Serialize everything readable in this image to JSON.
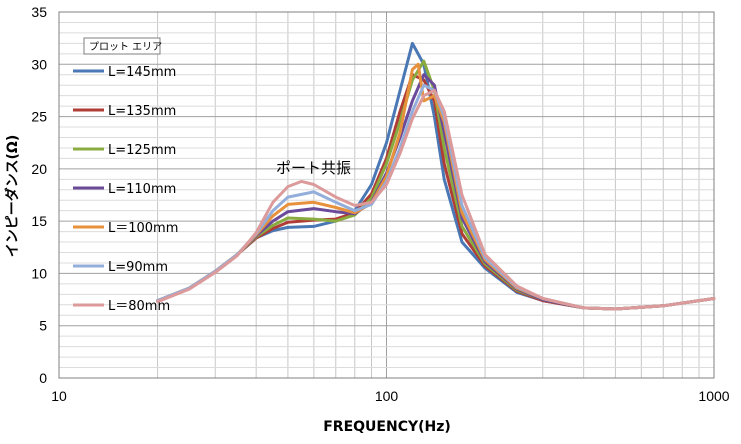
{
  "chart_data": {
    "type": "line",
    "xlabel": "FREQUENCY(Hz)",
    "ylabel": "インピーダンス(Ω)",
    "xscale": "log",
    "xlim": [
      10,
      1000
    ],
    "ylim": [
      0,
      35
    ],
    "x_tick_labels": [
      "10",
      "100",
      "1000"
    ],
    "y_tick_labels": [
      "0",
      "5",
      "10",
      "15",
      "20",
      "25",
      "30",
      "35"
    ],
    "grid": true,
    "legend_position": "left",
    "annotation": "ポート共振",
    "tooltip": "プロット エリア",
    "series": [
      {
        "name": "L=145mm",
        "color": "#4a78b5",
        "points": [
          [
            20,
            7.4
          ],
          [
            25,
            8.6
          ],
          [
            30,
            10.2
          ],
          [
            35,
            11.8
          ],
          [
            40,
            13.4
          ],
          [
            45,
            14.1
          ],
          [
            50,
            14.4
          ],
          [
            60,
            14.5
          ],
          [
            70,
            15.0
          ],
          [
            80,
            16.0
          ],
          [
            90,
            18.5
          ],
          [
            100,
            22.5
          ],
          [
            110,
            27.5
          ],
          [
            120,
            32.0
          ],
          [
            130,
            30.0
          ],
          [
            140,
            25.0
          ],
          [
            150,
            19.0
          ],
          [
            170,
            13.0
          ],
          [
            200,
            10.5
          ],
          [
            250,
            8.2
          ],
          [
            300,
            7.4
          ],
          [
            400,
            6.7
          ],
          [
            500,
            6.6
          ],
          [
            700,
            6.9
          ],
          [
            1000,
            7.6
          ]
        ]
      },
      {
        "name": "L=135mm",
        "color": "#b03c36",
        "points": [
          [
            20,
            7.4
          ],
          [
            25,
            8.6
          ],
          [
            30,
            10.2
          ],
          [
            35,
            11.8
          ],
          [
            40,
            13.4
          ],
          [
            45,
            14.3
          ],
          [
            50,
            14.9
          ],
          [
            60,
            15.1
          ],
          [
            70,
            15.2
          ],
          [
            80,
            15.8
          ],
          [
            90,
            17.6
          ],
          [
            100,
            21.0
          ],
          [
            110,
            25.5
          ],
          [
            120,
            29.0
          ],
          [
            130,
            28.5
          ],
          [
            140,
            26.5
          ],
          [
            150,
            20.5
          ],
          [
            170,
            13.8
          ],
          [
            200,
            10.7
          ],
          [
            250,
            8.3
          ],
          [
            300,
            7.4
          ],
          [
            400,
            6.7
          ],
          [
            500,
            6.6
          ],
          [
            700,
            6.9
          ],
          [
            1000,
            7.6
          ]
        ]
      },
      {
        "name": "L=125mm",
        "color": "#8aab3f",
        "points": [
          [
            20,
            7.4
          ],
          [
            25,
            8.6
          ],
          [
            30,
            10.2
          ],
          [
            35,
            11.8
          ],
          [
            40,
            13.5
          ],
          [
            45,
            14.6
          ],
          [
            50,
            15.3
          ],
          [
            60,
            15.2
          ],
          [
            70,
            15.0
          ],
          [
            80,
            15.6
          ],
          [
            90,
            17.2
          ],
          [
            100,
            20.5
          ],
          [
            110,
            24.5
          ],
          [
            120,
            28.5
          ],
          [
            130,
            30.3
          ],
          [
            140,
            27.5
          ],
          [
            150,
            22.0
          ],
          [
            170,
            14.5
          ],
          [
            200,
            10.9
          ],
          [
            250,
            8.4
          ],
          [
            300,
            7.5
          ],
          [
            400,
            6.7
          ],
          [
            500,
            6.6
          ],
          [
            700,
            6.9
          ],
          [
            1000,
            7.6
          ]
        ]
      },
      {
        "name": "L=110mm",
        "color": "#6a4a99",
        "points": [
          [
            20,
            7.4
          ],
          [
            25,
            8.6
          ],
          [
            30,
            10.2
          ],
          [
            35,
            11.8
          ],
          [
            40,
            13.6
          ],
          [
            45,
            15.0
          ],
          [
            50,
            15.9
          ],
          [
            60,
            16.2
          ],
          [
            70,
            15.9
          ],
          [
            80,
            15.7
          ],
          [
            90,
            16.8
          ],
          [
            100,
            19.6
          ],
          [
            110,
            23.0
          ],
          [
            120,
            26.5
          ],
          [
            130,
            29.0
          ],
          [
            140,
            28.0
          ],
          [
            150,
            23.5
          ],
          [
            170,
            15.3
          ],
          [
            200,
            11.1
          ],
          [
            250,
            8.5
          ],
          [
            300,
            7.5
          ],
          [
            400,
            6.7
          ],
          [
            500,
            6.6
          ],
          [
            700,
            6.9
          ],
          [
            1000,
            7.6
          ]
        ]
      },
      {
        "name": "L＝100mm",
        "color": "#e7913d",
        "points": [
          [
            20,
            7.4
          ],
          [
            25,
            8.6
          ],
          [
            30,
            10.2
          ],
          [
            35,
            11.8
          ],
          [
            40,
            13.7
          ],
          [
            45,
            15.5
          ],
          [
            50,
            16.6
          ],
          [
            60,
            16.8
          ],
          [
            70,
            16.3
          ],
          [
            80,
            15.8
          ],
          [
            90,
            16.7
          ],
          [
            100,
            19.3
          ],
          [
            110,
            23.5
          ],
          [
            120,
            29.5
          ],
          [
            125,
            30.0
          ],
          [
            130,
            26.5
          ],
          [
            140,
            27.0
          ],
          [
            150,
            24.5
          ],
          [
            170,
            15.8
          ],
          [
            200,
            11.3
          ],
          [
            250,
            8.6
          ],
          [
            300,
            7.6
          ],
          [
            400,
            6.7
          ],
          [
            500,
            6.6
          ],
          [
            700,
            6.9
          ],
          [
            1000,
            7.6
          ]
        ]
      },
      {
        "name": "L=90mm",
        "color": "#94aedb",
        "points": [
          [
            20,
            7.4
          ],
          [
            25,
            8.6
          ],
          [
            30,
            10.2
          ],
          [
            35,
            11.8
          ],
          [
            40,
            13.8
          ],
          [
            45,
            16.0
          ],
          [
            50,
            17.3
          ],
          [
            60,
            17.8
          ],
          [
            70,
            16.8
          ],
          [
            80,
            16.0
          ],
          [
            90,
            16.6
          ],
          [
            100,
            18.8
          ],
          [
            110,
            22.0
          ],
          [
            120,
            25.5
          ],
          [
            130,
            28.0
          ],
          [
            140,
            27.5
          ],
          [
            150,
            25.0
          ],
          [
            170,
            16.5
          ],
          [
            200,
            11.5
          ],
          [
            250,
            8.7
          ],
          [
            300,
            7.6
          ],
          [
            400,
            6.7
          ],
          [
            500,
            6.6
          ],
          [
            700,
            6.9
          ],
          [
            1000,
            7.6
          ]
        ]
      },
      {
        "name": "L＝80mm",
        "color": "#dc9a9b",
        "points": [
          [
            20,
            7.3
          ],
          [
            25,
            8.5
          ],
          [
            30,
            10.1
          ],
          [
            35,
            11.7
          ],
          [
            40,
            13.9
          ],
          [
            45,
            16.8
          ],
          [
            50,
            18.3
          ],
          [
            55,
            18.8
          ],
          [
            60,
            18.5
          ],
          [
            70,
            17.3
          ],
          [
            80,
            16.5
          ],
          [
            90,
            16.8
          ],
          [
            100,
            18.5
          ],
          [
            110,
            21.5
          ],
          [
            120,
            24.8
          ],
          [
            130,
            27.0
          ],
          [
            140,
            27.5
          ],
          [
            150,
            25.5
          ],
          [
            170,
            17.5
          ],
          [
            200,
            11.8
          ],
          [
            250,
            8.8
          ],
          [
            300,
            7.6
          ],
          [
            400,
            6.7
          ],
          [
            500,
            6.6
          ],
          [
            700,
            6.9
          ],
          [
            1000,
            7.6
          ]
        ]
      }
    ]
  }
}
